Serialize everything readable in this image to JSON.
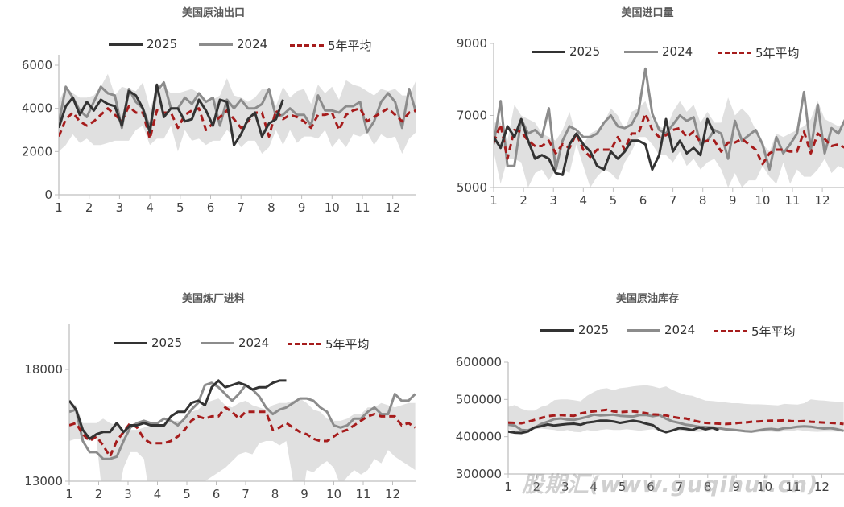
{
  "colors": {
    "y2025": "#333333",
    "y2024": "#8c8c8c",
    "avg5": "#a61c1c",
    "band": "#e0e0e0",
    "axis": "#bfbfbf",
    "text": "#404040"
  },
  "legend": {
    "y2025": "2025",
    "y2024": "2024",
    "avg5": "5年平均"
  },
  "watermark": "股期汇(www.guqihui.cn)",
  "chart_data": [
    {
      "type": "line",
      "title": "美国原油出口",
      "x_tick_labels": [
        "1",
        "2",
        "3",
        "4",
        "5",
        "6",
        "7",
        "8",
        "9",
        "10",
        "11",
        "12"
      ],
      "x_frequency": "weekly",
      "y_ticks": [
        "0",
        "2000",
        "4000",
        "6000"
      ],
      "ylim": [
        0,
        6000
      ],
      "series": [
        {
          "name": "2025",
          "values": [
            3100,
            4100,
            4500,
            3700,
            4300,
            3900,
            4400,
            4200,
            4100,
            3200,
            4800,
            4600,
            4000,
            2900,
            5100,
            3600,
            4000,
            4000,
            3400,
            3500,
            4400,
            3900,
            3200,
            4400,
            4300,
            2300,
            2800,
            3500,
            3800,
            2700,
            3300,
            3500,
            4400
          ]
        },
        {
          "name": "2024",
          "values": [
            3300,
            5000,
            4500,
            3900,
            3600,
            4300,
            5000,
            4700,
            4600,
            3100,
            4900,
            4300,
            4000,
            3100,
            4800,
            5200,
            4000,
            4000,
            4500,
            4200,
            4700,
            4300,
            4500,
            3200,
            4400,
            4000,
            4400,
            4000,
            4000,
            4200,
            4900,
            3600,
            3700,
            4000,
            3700,
            3700,
            3200,
            4600,
            3900,
            3900,
            3800,
            4100,
            4100,
            4300,
            2900,
            3400,
            4300,
            4700,
            4300,
            3100,
            4900,
            3800
          ]
        },
        {
          "name": "5年平均",
          "values": [
            2700,
            3500,
            3800,
            3400,
            3200,
            3400,
            3700,
            4000,
            3700,
            3400,
            4100,
            3800,
            3800,
            2600,
            3900,
            3800,
            3800,
            3100,
            3700,
            3900,
            4000,
            3000,
            3300,
            3600,
            3900,
            3500,
            3100,
            3400,
            3800,
            3800,
            2700,
            3900,
            3500,
            3700,
            3600,
            3400,
            3100,
            3700,
            3700,
            3800,
            3000,
            3700,
            3900,
            4000,
            3400,
            3600,
            3800,
            4000,
            3700,
            3400,
            3800,
            3900
          ]
        }
      ],
      "range_low": [
        2000,
        2300,
        2800,
        2400,
        2600,
        2300,
        2300,
        2400,
        2500,
        2500,
        2500,
        3000,
        3200,
        2300,
        2600,
        2600,
        3200,
        2000,
        3000,
        2500,
        2600,
        2300,
        2500,
        2500,
        3000,
        2700,
        2200,
        2500,
        2500,
        1900,
        2200,
        3000,
        2300,
        3000,
        2400,
        2700,
        2700,
        2600,
        3000,
        2200,
        2600,
        2200,
        2800,
        2700,
        2900,
        2300,
        2800,
        2600,
        2700,
        1900,
        2600,
        2900
      ],
      "range_high": [
        4300,
        5000,
        4700,
        4500,
        4500,
        4600,
        5000,
        5600,
        4600,
        5000,
        4900,
        4800,
        5200,
        4000,
        4800,
        5000,
        4700,
        4700,
        4800,
        4900,
        4700,
        4300,
        4400,
        4600,
        5400,
        4600,
        4500,
        4300,
        4500,
        4900,
        4900,
        4100,
        5000,
        4500,
        4800,
        4900,
        4200,
        5100,
        4700,
        5000,
        4400,
        5300,
        5100,
        5000,
        4800,
        4600,
        4900,
        4800,
        4900,
        4600,
        4600,
        5300
      ]
    },
    {
      "type": "line",
      "title": "美国进口量",
      "x_tick_labels": [
        "1",
        "2",
        "3",
        "4",
        "5",
        "6",
        "7",
        "8",
        "9",
        "10",
        "11",
        "12"
      ],
      "x_frequency": "weekly",
      "y_ticks": [
        "5000",
        "7000",
        "9000"
      ],
      "ylim": [
        5000,
        9000
      ],
      "series": [
        {
          "name": "2025",
          "values": [
            6400,
            6100,
            6700,
            6400,
            6900,
            6300,
            5800,
            5900,
            5800,
            5400,
            5350,
            6200,
            6500,
            6200,
            6000,
            5600,
            5500,
            6000,
            5800,
            6000,
            6300,
            6300,
            6200,
            5500,
            5900,
            6900,
            6000,
            6300,
            5950,
            6100,
            5900,
            6900,
            6500
          ]
        },
        {
          "name": "2024",
          "values": [
            6200,
            7400,
            5600,
            5600,
            6900,
            6500,
            6600,
            6400,
            7200,
            5500,
            6300,
            6700,
            6600,
            6400,
            6400,
            6500,
            6800,
            7000,
            6700,
            6650,
            6750,
            7100,
            8300,
            7050,
            6600,
            6500,
            6750,
            7000,
            6850,
            6950,
            6200,
            6300,
            6600,
            6500,
            5800,
            6850,
            6300,
            6450,
            6600,
            6200,
            5500,
            6400,
            5950,
            6200,
            6500,
            7650,
            6050,
            7300,
            5950,
            6650,
            6500,
            6900
          ]
        },
        {
          "name": "5年平均",
          "values": [
            6250,
            6750,
            5800,
            6600,
            6550,
            6300,
            6150,
            6150,
            6300,
            5950,
            6200,
            6100,
            6500,
            6050,
            5850,
            6050,
            6050,
            6050,
            6400,
            6050,
            6500,
            6500,
            7050,
            6600,
            6400,
            6450,
            6600,
            6650,
            6400,
            6550,
            6250,
            6300,
            6300,
            6000,
            6250,
            6250,
            6350,
            6200,
            6050,
            5650,
            5950,
            6050,
            6050,
            6000,
            6000,
            6550,
            5950,
            6500,
            6350,
            6150,
            6200,
            6100
          ]
        }
      ],
      "range_low": [
        6000,
        5100,
        5800,
        5800,
        5700,
        5000,
        5400,
        5500,
        5200,
        5500,
        5500,
        5400,
        6200,
        5600,
        5000,
        5300,
        5500,
        5400,
        5200,
        5700,
        6000,
        6400,
        6400,
        6200,
        5900,
        5900,
        5700,
        6000,
        5600,
        5800,
        5500,
        5700,
        5800,
        5500,
        5000,
        5400,
        5000,
        5200,
        5200,
        5600,
        5300,
        5100,
        5700,
        5100,
        5500,
        5300,
        5300,
        5500,
        5800,
        5400,
        5600,
        5500
      ],
      "range_high": [
        6800,
        6800,
        6300,
        7300,
        7000,
        6900,
        6800,
        6500,
        6400,
        6300,
        6600,
        7100,
        6400,
        6200,
        6500,
        6600,
        6800,
        7200,
        7000,
        6600,
        7100,
        7200,
        7400,
        6900,
        6700,
        6600,
        7100,
        7400,
        7100,
        7300,
        6800,
        7100,
        6800,
        6800,
        7500,
        7000,
        7200,
        7000,
        6600,
        6200,
        6000,
        6500,
        6400,
        6500,
        6600,
        6700,
        6900,
        7400,
        6900,
        6800,
        6700,
        6800
      ]
    },
    {
      "type": "line",
      "title": "美国炼厂进料",
      "x_tick_labels": [
        "1",
        "2",
        "3",
        "4",
        "5",
        "6",
        "7",
        "8",
        "9",
        "10",
        "11",
        "12"
      ],
      "x_frequency": "weekly",
      "y_ticks": [
        "13000",
        "18000"
      ],
      "ylim": [
        13000,
        20000
      ],
      "series": [
        {
          "name": "2025",
          "values": [
            16600,
            16200,
            15300,
            14900,
            15100,
            15200,
            15200,
            15600,
            15200,
            15500,
            15500,
            15600,
            15500,
            15500,
            15500,
            15900,
            16100,
            16100,
            16500,
            16600,
            16400,
            17200,
            17500,
            17200,
            17300,
            17400,
            17300,
            17100,
            17200,
            17200,
            17400,
            17500,
            17500
          ]
        },
        {
          "name": "2024",
          "values": [
            16100,
            16200,
            14800,
            14300,
            14300,
            14000,
            14000,
            14100,
            14800,
            15400,
            15600,
            15700,
            15600,
            15600,
            15800,
            15700,
            15500,
            15800,
            16200,
            16500,
            17300,
            17400,
            17200,
            16900,
            16600,
            16900,
            17300,
            17100,
            16800,
            16300,
            16000,
            16200,
            16300,
            16500,
            16700,
            16700,
            16600,
            16300,
            16100,
            15500,
            15400,
            15500,
            15800,
            15800,
            16100,
            16300,
            16000,
            16000,
            16900,
            16600,
            16600,
            16900
          ]
        },
        {
          "name": "5年平均",
          "values": [
            15500,
            15600,
            15100,
            14800,
            15000,
            14600,
            14100,
            14800,
            15200,
            15600,
            15400,
            14900,
            14700,
            14700,
            14700,
            14800,
            15000,
            15300,
            15700,
            15900,
            15800,
            15900,
            15900,
            16300,
            16100,
            15800,
            16100,
            16100,
            16100,
            16100,
            15300,
            15400,
            15600,
            15400,
            15200,
            15100,
            14900,
            14800,
            14800,
            15000,
            15200,
            15300,
            15500,
            15700,
            15900,
            16000,
            15900,
            15900,
            15900,
            15500,
            15600,
            15400
          ]
        }
      ],
      "range_low": [
        14800,
        14900,
        14900,
        14800,
        14900,
        12000,
        12000,
        12000,
        13600,
        14300,
        14300,
        14000,
        12000,
        11500,
        11500,
        11500,
        11500,
        11500,
        11500,
        11500,
        13000,
        13200,
        13400,
        13600,
        13900,
        14200,
        14300,
        14200,
        14700,
        14800,
        14800,
        14600,
        14800,
        13000,
        11500,
        13500,
        13400,
        13700,
        13900,
        13600,
        12800,
        13200,
        13500,
        13300,
        13500,
        14000,
        13800,
        14400,
        14100,
        13900,
        13700,
        13500
      ],
      "range_high": [
        16500,
        16400,
        15600,
        15600,
        15600,
        15800,
        15600,
        15500,
        15300,
        15300,
        15300,
        15400,
        15500,
        15600,
        15500,
        15700,
        15700,
        15700,
        16100,
        16200,
        16500,
        16600,
        16700,
        16400,
        16300,
        16500,
        16600,
        16400,
        16300,
        16200,
        16400,
        16500,
        16500,
        16600,
        16700,
        16500,
        16200,
        16100,
        15800,
        15700,
        15700,
        15800,
        16000,
        16000,
        16300,
        16300,
        16500,
        16400,
        16300,
        16400,
        16500,
        16500
      ]
    },
    {
      "type": "line",
      "title": "美国原油库存",
      "x_tick_labels": [
        "1",
        "2",
        "3",
        "4",
        "5",
        "6",
        "7",
        "8",
        "9",
        "10",
        "11",
        "12"
      ],
      "x_frequency": "weekly",
      "y_ticks": [
        "300000",
        "400000",
        "500000",
        "600000"
      ],
      "ylim": [
        300000,
        600000
      ],
      "series": [
        {
          "name": "2025",
          "values": [
            414000,
            411000,
            410000,
            414000,
            425000,
            428000,
            433000,
            430000,
            432000,
            434000,
            435000,
            432000,
            438000,
            440000,
            443000,
            443000,
            441000,
            437000,
            440000,
            443000,
            440000,
            435000,
            431000,
            418000,
            412000,
            417000,
            423000,
            421000,
            418000,
            425000,
            420000,
            424000,
            418000
          ]
        },
        {
          "name": "2024",
          "values": [
            432000,
            430000,
            418000,
            417000,
            424000,
            434000,
            440000,
            447000,
            449000,
            446000,
            445000,
            449000,
            453000,
            459000,
            457000,
            458000,
            459000,
            456000,
            455000,
            454000,
            458000,
            458000,
            455000,
            458000,
            448000,
            441000,
            437000,
            432000,
            430000,
            427000,
            426000,
            425000,
            423000,
            420000,
            419000,
            417000,
            415000,
            414000,
            417000,
            420000,
            421000,
            419000,
            423000,
            424000,
            427000,
            428000,
            427000,
            424000,
            422000,
            423000,
            420000,
            416000
          ]
        },
        {
          "name": "5年平均",
          "values": [
            438000,
            437000,
            436000,
            440000,
            445000,
            450000,
            455000,
            457000,
            458000,
            457000,
            456000,
            462000,
            466000,
            468000,
            470000,
            472000,
            468000,
            466000,
            467000,
            468000,
            466000,
            463000,
            460000,
            459000,
            457000,
            453000,
            450000,
            449000,
            444000,
            440000,
            437000,
            436000,
            435000,
            434000,
            435000,
            437000,
            438000,
            440000,
            441000,
            442000,
            443000,
            443000,
            444000,
            442000,
            441000,
            442000,
            440000,
            439000,
            438000,
            437000,
            436000,
            434000
          ]
        }
      ],
      "range_low": [
        420000,
        415000,
        412000,
        418000,
        420000,
        422000,
        420000,
        418000,
        415000,
        418000,
        413000,
        412000,
        418000,
        415000,
        418000,
        420000,
        418000,
        418000,
        420000,
        418000,
        416000,
        418000,
        420000,
        416000,
        415000,
        416000,
        416000,
        414000,
        414000,
        413000,
        415000,
        418000,
        418000,
        418000,
        415000,
        414000,
        412000,
        410000,
        412000,
        414000,
        414000,
        412000,
        415000,
        415000,
        418000,
        416000,
        414000,
        413000,
        414000,
        414000,
        414000,
        413000
      ],
      "range_high": [
        480000,
        485000,
        475000,
        470000,
        470000,
        480000,
        485000,
        498000,
        500000,
        500000,
        498000,
        495000,
        510000,
        520000,
        528000,
        530000,
        525000,
        530000,
        532000,
        535000,
        537000,
        538000,
        535000,
        530000,
        535000,
        525000,
        518000,
        512000,
        510000,
        503000,
        497000,
        496000,
        494000,
        492000,
        490000,
        490000,
        488000,
        487000,
        487000,
        486000,
        485000,
        484000,
        488000,
        487000,
        486000,
        490000,
        500000,
        498000,
        497000,
        495000,
        494000,
        492000
      ]
    }
  ]
}
